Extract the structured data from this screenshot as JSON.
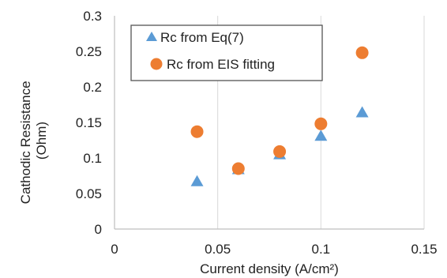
{
  "chart_data": {
    "type": "scatter",
    "title": "",
    "xlabel": "Current density (A/cm²)",
    "ylabel": [
      "Cathodic Resistance",
      "(Ohm)"
    ],
    "xlim": [
      0,
      0.15
    ],
    "ylim": [
      0,
      0.3
    ],
    "xticks": [
      0,
      0.05,
      0.1,
      0.15
    ],
    "xtick_labels": [
      "0",
      "0.05",
      "0.1",
      "0.15"
    ],
    "yticks": [
      0,
      0.05,
      0.1,
      0.15,
      0.2,
      0.25,
      0.3
    ],
    "ytick_labels": [
      "0",
      "0.05",
      "0.1",
      "0.15",
      "0.2",
      "0.25",
      "0.3"
    ],
    "grid": "vertical",
    "legend_position": "top-left",
    "series": [
      {
        "name": "Rc from Eq(7)",
        "marker": "triangle",
        "color": "#5B9BD5",
        "x": [
          0.04,
          0.06,
          0.08,
          0.1,
          0.12
        ],
        "y": [
          0.068,
          0.085,
          0.106,
          0.132,
          0.165
        ]
      },
      {
        "name": "Rc from EIS fitting",
        "marker": "circle",
        "color": "#ED7D31",
        "x": [
          0.04,
          0.06,
          0.08,
          0.1,
          0.12
        ],
        "y": [
          0.137,
          0.085,
          0.109,
          0.148,
          0.248
        ]
      }
    ]
  }
}
